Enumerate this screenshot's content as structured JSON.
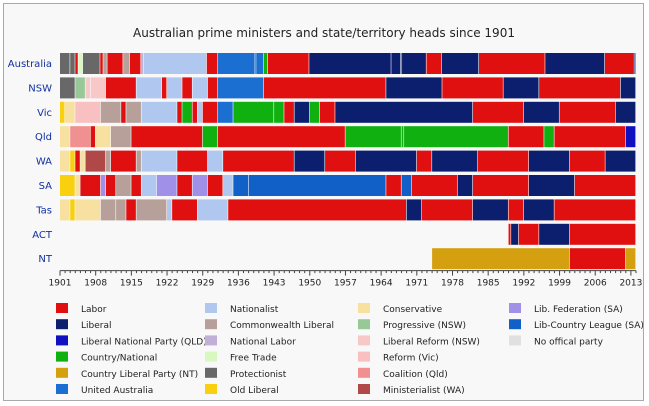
{
  "chart_data": {
    "type": "timeline",
    "title": "Australian prime ministers and state/territory heads since 1901",
    "x_ticks": [
      "1901",
      "1908",
      "1915",
      "1922",
      "1929",
      "1936",
      "1943",
      "1950",
      "1957",
      "1964",
      "1971",
      "1978",
      "1985",
      "1992",
      "1999",
      "2006",
      "2013"
    ],
    "x_range": [
      1901,
      2014
    ],
    "rows": [
      "Australia",
      "NSW",
      "Vic",
      "Qld",
      "WA",
      "SA",
      "Tas",
      "ACT",
      "NT"
    ],
    "legend": [
      {
        "key": "labor",
        "label": "Labor",
        "color": "#e01010"
      },
      {
        "key": "liberal",
        "label": "Liberal",
        "color": "#0c1e6e"
      },
      {
        "key": "lnp",
        "label": "Liberal National Party (QLD)",
        "color": "#1010c0"
      },
      {
        "key": "country",
        "label": "Country/National",
        "color": "#10b010"
      },
      {
        "key": "clp",
        "label": "Country Liberal Party (NT)",
        "color": "#d4a010"
      },
      {
        "key": "ua",
        "label": "United Australia",
        "color": "#1a6fd0"
      },
      {
        "key": "nationalist",
        "label": "Nationalist",
        "color": "#b0c8f0"
      },
      {
        "key": "cwlib",
        "label": "Commonwealth Liberal",
        "color": "#b8a09a"
      },
      {
        "key": "natlabor",
        "label": "National Labor",
        "color": "#c0b0d8"
      },
      {
        "key": "freetrade",
        "label": "Free Trade",
        "color": "#d8f8c0"
      },
      {
        "key": "protectionist",
        "label": "Protectionist",
        "color": "#686868"
      },
      {
        "key": "oldlib",
        "label": "Old Liberal",
        "color": "#f8d010"
      },
      {
        "key": "conservative",
        "label": "Conservative",
        "color": "#f8e0a0"
      },
      {
        "key": "progressive",
        "label": "Progressive (NSW)",
        "color": "#98c898"
      },
      {
        "key": "libreform",
        "label": "Liberal Reform (NSW)",
        "color": "#f8c8c8"
      },
      {
        "key": "reformvic",
        "label": "Reform (Vic)",
        "color": "#f8c0c0"
      },
      {
        "key": "coalition",
        "label": "Coalition (Qld)",
        "color": "#f09090"
      },
      {
        "key": "ministerialist",
        "label": "Ministerialist (WA)",
        "color": "#b04848"
      },
      {
        "key": "libfed",
        "label": "Lib. Federation (SA)",
        "color": "#a090e8"
      },
      {
        "key": "lcl",
        "label": "Lib-Country League (SA)",
        "color": "#1060c8"
      },
      {
        "key": "noparty",
        "label": "No offical party",
        "color": "#e0e0e0"
      }
    ],
    "segments": {
      "Australia": [
        [
          1901,
          1903,
          "protectionist"
        ],
        [
          1903,
          1904,
          "protectionist"
        ],
        [
          1904,
          1904.6,
          "labor"
        ],
        [
          1904.6,
          1905.5,
          "freetrade"
        ],
        [
          1905.5,
          1908.9,
          "protectionist"
        ],
        [
          1908.9,
          1909.5,
          "labor"
        ],
        [
          1909.5,
          1910.3,
          "cwlib"
        ],
        [
          1910.3,
          1913.4,
          "labor"
        ],
        [
          1913.4,
          1914.7,
          "cwlib"
        ],
        [
          1914.7,
          1916.9,
          "labor"
        ],
        [
          1916.9,
          1917.4,
          "natlabor"
        ],
        [
          1917.4,
          1929.8,
          "nationalist"
        ],
        [
          1929.8,
          1932,
          "labor"
        ],
        [
          1932,
          1939.3,
          "ua"
        ],
        [
          1939.3,
          1939.5,
          "country"
        ],
        [
          1939.5,
          1941,
          "ua"
        ],
        [
          1941,
          1941.8,
          "country"
        ],
        [
          1941.8,
          1949.9,
          "labor"
        ],
        [
          1949.9,
          1966,
          "liberal"
        ],
        [
          1966,
          1967.9,
          "liberal"
        ],
        [
          1967.9,
          1968.1,
          "country"
        ],
        [
          1968.1,
          1972.9,
          "liberal"
        ],
        [
          1972.9,
          1975.9,
          "labor"
        ],
        [
          1975.9,
          1983.2,
          "liberal"
        ],
        [
          1983.2,
          1996.2,
          "labor"
        ],
        [
          1996.2,
          2007.9,
          "liberal"
        ],
        [
          2007.9,
          2013.7,
          "labor"
        ],
        [
          2013.7,
          2014,
          "liberal"
        ]
      ],
      "NSW": [
        [
          1901,
          1904,
          "protectionist"
        ],
        [
          1904,
          1906,
          "progressive"
        ],
        [
          1906,
          1907,
          "libreform"
        ],
        [
          1907,
          1910,
          "libreform"
        ],
        [
          1910,
          1916,
          "labor"
        ],
        [
          1916,
          1921,
          "nationalist"
        ],
        [
          1921,
          1922,
          "labor"
        ],
        [
          1922,
          1925,
          "nationalist"
        ],
        [
          1925,
          1927,
          "labor"
        ],
        [
          1927,
          1930,
          "nationalist"
        ],
        [
          1930,
          1932,
          "labor"
        ],
        [
          1932,
          1941,
          "ua"
        ],
        [
          1941,
          1965,
          "labor"
        ],
        [
          1965,
          1976,
          "liberal"
        ],
        [
          1976,
          1988,
          "labor"
        ],
        [
          1988,
          1995,
          "liberal"
        ],
        [
          1995,
          2011,
          "labor"
        ],
        [
          2011,
          2014,
          "liberal"
        ]
      ],
      "Vic": [
        [
          1901,
          1902,
          "oldlib"
        ],
        [
          1902,
          1904,
          "conservative"
        ],
        [
          1904,
          1909,
          "reformvic"
        ],
        [
          1909,
          1913,
          "cwlib"
        ],
        [
          1913,
          1914,
          "labor"
        ],
        [
          1914,
          1917,
          "cwlib"
        ],
        [
          1917,
          1924,
          "nationalist"
        ],
        [
          1924,
          1925,
          "labor"
        ],
        [
          1925,
          1927,
          "country"
        ],
        [
          1927,
          1928,
          "labor"
        ],
        [
          1928,
          1929,
          "nationalist"
        ],
        [
          1929,
          1932,
          "labor"
        ],
        [
          1932,
          1935,
          "ua"
        ],
        [
          1935,
          1943,
          "country"
        ],
        [
          1943,
          1945,
          "country"
        ],
        [
          1945,
          1947,
          "labor"
        ],
        [
          1947,
          1950,
          "liberal"
        ],
        [
          1950,
          1952,
          "country"
        ],
        [
          1952,
          1955,
          "labor"
        ],
        [
          1955,
          1982,
          "liberal"
        ],
        [
          1982,
          1992,
          "labor"
        ],
        [
          1992,
          1999,
          "liberal"
        ],
        [
          1999,
          2010,
          "labor"
        ],
        [
          2010,
          2014,
          "liberal"
        ]
      ],
      "Qld": [
        [
          1901,
          1903,
          "conservative"
        ],
        [
          1903,
          1907,
          "coalition"
        ],
        [
          1907,
          1908,
          "labor"
        ],
        [
          1908,
          1911,
          "conservative"
        ],
        [
          1911,
          1915,
          "cwlib"
        ],
        [
          1915,
          1929,
          "labor"
        ],
        [
          1929,
          1932,
          "country"
        ],
        [
          1932,
          1957,
          "labor"
        ],
        [
          1957,
          1968,
          "country"
        ],
        [
          1968,
          1968.5,
          "country"
        ],
        [
          1968.5,
          1989,
          "country"
        ],
        [
          1989,
          1996,
          "labor"
        ],
        [
          1996,
          1998,
          "country"
        ],
        [
          1998,
          2012,
          "labor"
        ],
        [
          2012,
          2014,
          "lnp"
        ]
      ],
      "WA": [
        [
          1901,
          1903,
          "conservative"
        ],
        [
          1903,
          1904,
          "oldlib"
        ],
        [
          1904,
          1905,
          "labor"
        ],
        [
          1905,
          1906,
          "conservative"
        ],
        [
          1906,
          1910,
          "ministerialist"
        ],
        [
          1910,
          1911,
          "cwlib"
        ],
        [
          1911,
          1916,
          "labor"
        ],
        [
          1916,
          1917,
          "cwlib"
        ],
        [
          1917,
          1924,
          "nationalist"
        ],
        [
          1924,
          1930,
          "labor"
        ],
        [
          1930,
          1933,
          "nationalist"
        ],
        [
          1933,
          1947,
          "labor"
        ],
        [
          1947,
          1953,
          "liberal"
        ],
        [
          1953,
          1959,
          "labor"
        ],
        [
          1959,
          1971,
          "liberal"
        ],
        [
          1971,
          1974,
          "labor"
        ],
        [
          1974,
          1983,
          "liberal"
        ],
        [
          1983,
          1993,
          "labor"
        ],
        [
          1993,
          2001,
          "liberal"
        ],
        [
          2001,
          2008,
          "labor"
        ],
        [
          2008,
          2014,
          "liberal"
        ]
      ],
      "SA": [
        [
          1901,
          1904,
          "oldlib"
        ],
        [
          1904,
          1905,
          "conservative"
        ],
        [
          1905,
          1909,
          "labor"
        ],
        [
          1909,
          1910,
          "libfed"
        ],
        [
          1910,
          1912,
          "labor"
        ],
        [
          1912,
          1915,
          "cwlib"
        ],
        [
          1915,
          1917,
          "labor"
        ],
        [
          1917,
          1920,
          "nationalist"
        ],
        [
          1920,
          1924,
          "libfed"
        ],
        [
          1924,
          1927,
          "labor"
        ],
        [
          1927,
          1930,
          "libfed"
        ],
        [
          1930,
          1933,
          "labor"
        ],
        [
          1933,
          1935,
          "nationalist"
        ],
        [
          1935,
          1938,
          "lcl"
        ],
        [
          1938,
          1965,
          "lcl"
        ],
        [
          1965,
          1968,
          "labor"
        ],
        [
          1968,
          1970,
          "lcl"
        ],
        [
          1970,
          1979,
          "labor"
        ],
        [
          1979,
          1982,
          "liberal"
        ],
        [
          1982,
          1993,
          "labor"
        ],
        [
          1993,
          2002,
          "liberal"
        ],
        [
          2002,
          2014,
          "labor"
        ]
      ],
      "Tas": [
        [
          1901,
          1903,
          "conservative"
        ],
        [
          1903,
          1904,
          "oldlib"
        ],
        [
          1904,
          1909,
          "conservative"
        ],
        [
          1909,
          1912,
          "cwlib"
        ],
        [
          1912,
          1914,
          "cwlib"
        ],
        [
          1914,
          1916,
          "labor"
        ],
        [
          1916,
          1922,
          "cwlib"
        ],
        [
          1922,
          1923,
          "nationalist"
        ],
        [
          1923,
          1928,
          "labor"
        ],
        [
          1928,
          1934,
          "nationalist"
        ],
        [
          1934,
          1969,
          "labor"
        ],
        [
          1969,
          1972,
          "liberal"
        ],
        [
          1972,
          1982,
          "labor"
        ],
        [
          1982,
          1989,
          "liberal"
        ],
        [
          1989,
          1992,
          "labor"
        ],
        [
          1992,
          1998,
          "liberal"
        ],
        [
          1998,
          2014,
          "labor"
        ]
      ],
      "ACT": [
        [
          1989,
          1989.5,
          "labor"
        ],
        [
          1989.5,
          1991,
          "liberal"
        ],
        [
          1991,
          1995,
          "labor"
        ],
        [
          1995,
          2001,
          "liberal"
        ],
        [
          2001,
          2014,
          "labor"
        ]
      ],
      "NT": [
        [
          1974,
          2001,
          "clp"
        ],
        [
          2001,
          2012,
          "labor"
        ],
        [
          2012,
          2014,
          "clp"
        ]
      ]
    }
  }
}
